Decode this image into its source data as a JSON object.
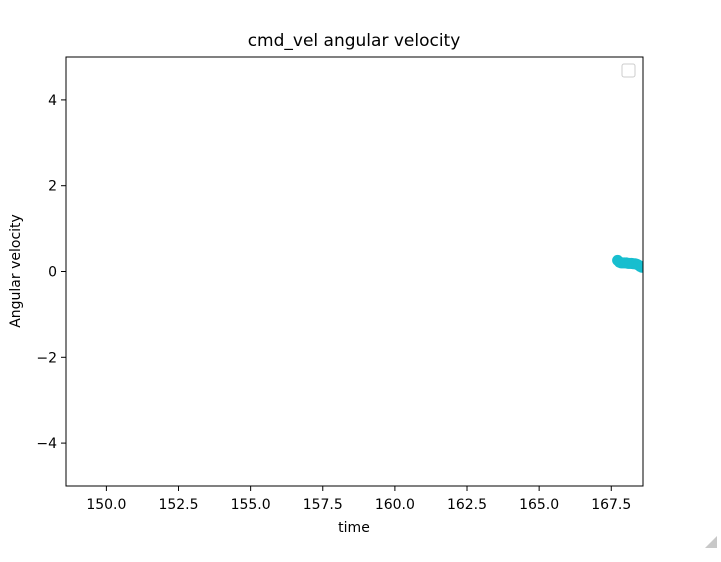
{
  "chart_data": {
    "type": "scatter",
    "title": "cmd_vel angular velocity",
    "xlabel": "time",
    "ylabel": "Angular velocity",
    "xlim": [
      148.6,
      168.6
    ],
    "ylim": [
      -5,
      5
    ],
    "x_ticks": [
      150.0,
      152.5,
      155.0,
      157.5,
      160.0,
      162.5,
      165.0,
      167.5
    ],
    "x_tick_labels": [
      "150.0",
      "152.5",
      "155.0",
      "157.5",
      "160.0",
      "162.5",
      "165.0",
      "167.5"
    ],
    "y_ticks": [
      4,
      2,
      0,
      -2,
      -4
    ],
    "y_tick_labels": [
      "4",
      "2",
      "0",
      "−2",
      "−4"
    ],
    "grid": false,
    "legend": {
      "placement": "top-right",
      "entries": []
    },
    "series": [
      {
        "color": "#17becf",
        "x": [
          167.72,
          167.78,
          167.84,
          167.9,
          167.96,
          168.02,
          168.08,
          168.14,
          168.2,
          168.26,
          168.32,
          168.38,
          168.44,
          168.5,
          168.56
        ],
        "y": [
          0.26,
          0.22,
          0.2,
          0.2,
          0.2,
          0.2,
          0.19,
          0.19,
          0.19,
          0.18,
          0.18,
          0.17,
          0.15,
          0.12,
          0.1
        ]
      }
    ]
  }
}
